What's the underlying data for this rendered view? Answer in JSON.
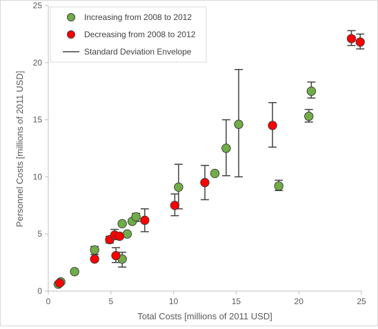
{
  "chart_data": {
    "type": "scatter",
    "xlabel": "Total Costs [millions of 2011 USD]",
    "ylabel": "Personnel Costs [millions of 2011 USD]",
    "xlim": [
      0,
      25
    ],
    "ylim": [
      0,
      25
    ],
    "x_ticks": [
      0,
      5,
      10,
      15,
      20,
      25
    ],
    "y_ticks": [
      0,
      5,
      10,
      15,
      20,
      25
    ],
    "grid": false,
    "legend_position": "top-left",
    "legend": {
      "increasing": "Increasing from 2008 to 2012",
      "decreasing": "Decreasing from 2008 to 2012",
      "envelope": "Standard Deviation Envelope"
    },
    "colors": {
      "increasing": "#70ad47",
      "decreasing": "#ff0000",
      "marker_edge": "#404040",
      "errorbar": "#404040",
      "axis": "#bfbfbf"
    },
    "series": [
      {
        "name": "Increasing from 2008 to 2012",
        "points": [
          {
            "x": 0.8,
            "y": 0.6
          },
          {
            "x": 1.0,
            "y": 0.8
          },
          {
            "x": 2.1,
            "y": 1.7
          },
          {
            "x": 3.7,
            "y": 3.6,
            "err": [
              3.2,
              3.9
            ]
          },
          {
            "x": 5.9,
            "y": 2.8,
            "err": [
              2.1,
              3.4
            ]
          },
          {
            "x": 5.9,
            "y": 5.9
          },
          {
            "x": 6.3,
            "y": 5.0
          },
          {
            "x": 6.7,
            "y": 6.1
          },
          {
            "x": 7.0,
            "y": 6.5,
            "err": [
              6.1,
              6.8
            ]
          },
          {
            "x": 10.4,
            "y": 9.1,
            "err": [
              7.2,
              11.1
            ]
          },
          {
            "x": 13.3,
            "y": 10.3
          },
          {
            "x": 14.2,
            "y": 12.5,
            "err": [
              10.1,
              15.0
            ]
          },
          {
            "x": 15.2,
            "y": 14.6,
            "err": [
              10.0,
              19.4
            ]
          },
          {
            "x": 18.4,
            "y": 9.2,
            "err": [
              8.8,
              9.7
            ]
          },
          {
            "x": 20.8,
            "y": 15.3,
            "err": [
              14.8,
              15.9
            ]
          },
          {
            "x": 21.0,
            "y": 17.5,
            "err": [
              16.9,
              18.3
            ]
          }
        ]
      },
      {
        "name": "Decreasing from 2008 to 2012",
        "points": [
          {
            "x": 0.9,
            "y": 0.7
          },
          {
            "x": 3.7,
            "y": 2.8
          },
          {
            "x": 4.9,
            "y": 4.5,
            "err": [
              4.2,
              4.8
            ]
          },
          {
            "x": 5.3,
            "y": 4.9,
            "err": [
              4.5,
              5.4
            ]
          },
          {
            "x": 5.4,
            "y": 3.1,
            "err": [
              2.5,
              3.8
            ]
          },
          {
            "x": 5.7,
            "y": 4.8
          },
          {
            "x": 7.7,
            "y": 6.2,
            "err": [
              5.2,
              7.2
            ]
          },
          {
            "x": 10.1,
            "y": 7.5,
            "err": [
              6.6,
              8.5
            ]
          },
          {
            "x": 12.5,
            "y": 9.5,
            "err": [
              8.0,
              11.0
            ]
          },
          {
            "x": 17.9,
            "y": 14.5,
            "err": [
              12.6,
              16.5
            ]
          },
          {
            "x": 24.2,
            "y": 22.1,
            "err": [
              21.5,
              22.8
            ]
          },
          {
            "x": 24.9,
            "y": 21.8,
            "err": [
              21.2,
              22.5
            ]
          }
        ]
      }
    ]
  }
}
